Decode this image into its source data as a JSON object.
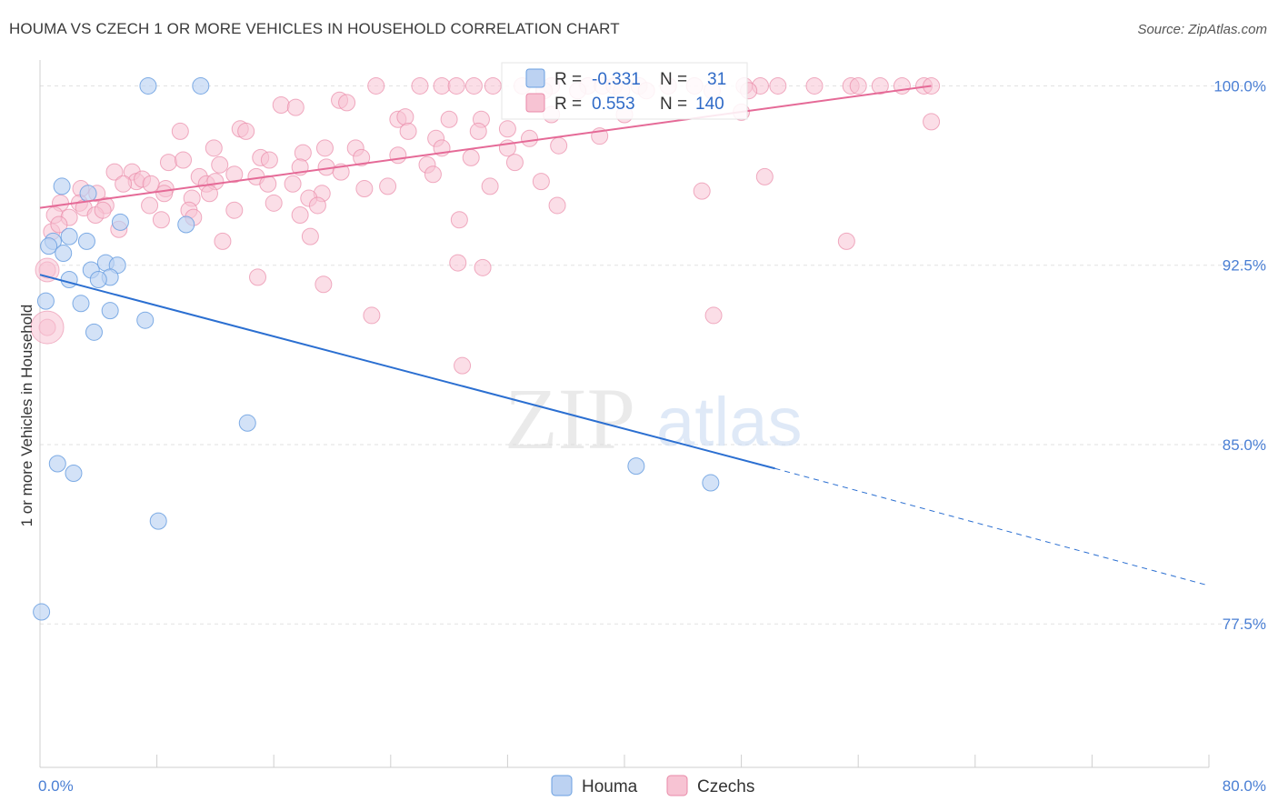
{
  "header": {
    "title": "HOUMA VS CZECH 1 OR MORE VEHICLES IN HOUSEHOLD CORRELATION CHART",
    "source": "Source: ZipAtlas.com"
  },
  "colors": {
    "houma": "#6a9fe0",
    "houma_fill": "#bcd2f2",
    "czechs": "#e98aa8",
    "czechs_fill": "#f7c3d3",
    "houma_line": "#2b6fd1",
    "czechs_line": "#e56a97",
    "grid": "#e2e2e2",
    "tick": "#4a7fd4"
  },
  "legend": {
    "houma": {
      "r_label": "R = ",
      "r_value": "-0.331",
      "n_label": "N = ",
      "n_value": "31"
    },
    "czechs": {
      "r_label": "R = ",
      "r_value": "0.553",
      "n_label": "N = ",
      "n_value": "140"
    }
  },
  "watermark": {
    "zip": "ZIP",
    "atlas": "atlas"
  },
  "chart_data": {
    "type": "scatter",
    "title": "HOUMA VS CZECH 1 OR MORE VEHICLES IN HOUSEHOLD CORRELATION CHART",
    "xlabel": "",
    "ylabel": "1 or more Vehicles in Household",
    "xlim": [
      0,
      80
    ],
    "ylim": [
      71.5,
      101.5
    ],
    "x_tick_labels": [
      "0.0%",
      "80.0%"
    ],
    "y_ticks": [
      77.5,
      85.0,
      92.5,
      100.0
    ],
    "y_tick_labels": [
      "77.5%",
      "85.0%",
      "92.5%",
      "100.0%"
    ],
    "grid": true,
    "legend_position": "bottom-center",
    "series": [
      {
        "name": "Houma",
        "r": -0.331,
        "n": 31,
        "trend": {
          "x0": 0,
          "y0": 92.1,
          "x1": 50.3,
          "y1": 84.0,
          "dashed_to_x": 80,
          "dashed_to_y": 79.1
        },
        "points": [
          [
            7.4,
            100.0
          ],
          [
            11.0,
            100.0
          ],
          [
            1.5,
            95.8
          ],
          [
            3.3,
            95.5
          ],
          [
            0.9,
            93.5
          ],
          [
            0.6,
            93.3
          ],
          [
            2.0,
            93.7
          ],
          [
            3.2,
            93.5
          ],
          [
            1.6,
            93.0
          ],
          [
            5.5,
            94.3
          ],
          [
            10.0,
            94.2
          ],
          [
            3.5,
            92.3
          ],
          [
            4.5,
            92.6
          ],
          [
            5.3,
            92.5
          ],
          [
            4.8,
            92.0
          ],
          [
            2.0,
            91.9
          ],
          [
            4.0,
            91.9
          ],
          [
            0.4,
            91.0
          ],
          [
            2.8,
            90.9
          ],
          [
            4.8,
            90.6
          ],
          [
            7.2,
            90.2
          ],
          [
            3.7,
            89.7
          ],
          [
            14.2,
            85.9
          ],
          [
            1.2,
            84.2
          ],
          [
            2.3,
            83.8
          ],
          [
            40.8,
            84.1
          ],
          [
            45.9,
            83.4
          ],
          [
            8.1,
            81.8
          ],
          [
            0.1,
            78.0
          ]
        ]
      },
      {
        "name": "Czechs",
        "r": 0.553,
        "n": 140,
        "trend": {
          "x0": 0,
          "y0": 94.9,
          "x1": 61.0,
          "y1": 100.0
        },
        "points": [
          [
            23.0,
            100.0
          ],
          [
            26.0,
            100.0
          ],
          [
            27.5,
            100.0
          ],
          [
            28.5,
            100.0
          ],
          [
            29.7,
            100.0
          ],
          [
            31.0,
            100.0
          ],
          [
            33.0,
            100.0
          ],
          [
            35.0,
            100.0
          ],
          [
            37.5,
            100.0
          ],
          [
            38.5,
            100.0
          ],
          [
            39.3,
            100.0
          ],
          [
            41.0,
            100.0
          ],
          [
            43.0,
            100.0
          ],
          [
            44.8,
            100.0
          ],
          [
            48.2,
            100.0
          ],
          [
            49.3,
            100.0
          ],
          [
            50.5,
            100.0
          ],
          [
            53.0,
            100.0
          ],
          [
            55.5,
            100.0
          ],
          [
            56.0,
            100.0
          ],
          [
            57.5,
            100.0
          ],
          [
            59.0,
            100.0
          ],
          [
            60.5,
            100.0
          ],
          [
            61.0,
            100.0
          ],
          [
            34.5,
            99.8
          ],
          [
            36.8,
            99.8
          ],
          [
            39.8,
            99.8
          ],
          [
            41.5,
            99.8
          ],
          [
            46.0,
            99.8
          ],
          [
            48.5,
            99.8
          ],
          [
            16.5,
            99.2
          ],
          [
            17.5,
            99.1
          ],
          [
            20.5,
            99.4
          ],
          [
            21.0,
            99.3
          ],
          [
            24.5,
            98.6
          ],
          [
            25.0,
            98.7
          ],
          [
            28.0,
            98.6
          ],
          [
            30.2,
            98.6
          ],
          [
            32.0,
            98.2
          ],
          [
            35.0,
            98.8
          ],
          [
            40.0,
            98.8
          ],
          [
            48.0,
            98.9
          ],
          [
            61.0,
            98.5
          ],
          [
            9.6,
            98.1
          ],
          [
            13.7,
            98.2
          ],
          [
            14.1,
            98.1
          ],
          [
            25.2,
            98.1
          ],
          [
            27.1,
            97.8
          ],
          [
            30.0,
            98.1
          ],
          [
            33.5,
            97.8
          ],
          [
            35.5,
            97.5
          ],
          [
            38.3,
            97.9
          ],
          [
            11.9,
            97.4
          ],
          [
            18.0,
            97.2
          ],
          [
            19.5,
            97.4
          ],
          [
            21.6,
            97.4
          ],
          [
            22.0,
            97.0
          ],
          [
            24.5,
            97.1
          ],
          [
            27.5,
            97.4
          ],
          [
            29.5,
            97.0
          ],
          [
            32.0,
            97.4
          ],
          [
            8.8,
            96.8
          ],
          [
            9.8,
            96.9
          ],
          [
            12.3,
            96.7
          ],
          [
            15.1,
            97.0
          ],
          [
            15.7,
            96.9
          ],
          [
            17.8,
            96.6
          ],
          [
            19.6,
            96.6
          ],
          [
            20.6,
            96.4
          ],
          [
            26.5,
            96.7
          ],
          [
            32.5,
            96.8
          ],
          [
            5.1,
            96.4
          ],
          [
            6.3,
            96.4
          ],
          [
            6.6,
            96.0
          ],
          [
            7.0,
            96.1
          ],
          [
            8.6,
            95.7
          ],
          [
            10.9,
            96.2
          ],
          [
            11.4,
            95.9
          ],
          [
            12.0,
            96.0
          ],
          [
            13.3,
            96.3
          ],
          [
            14.8,
            96.2
          ],
          [
            15.6,
            95.9
          ],
          [
            17.3,
            95.9
          ],
          [
            19.3,
            95.5
          ],
          [
            22.2,
            95.7
          ],
          [
            23.8,
            95.8
          ],
          [
            26.9,
            96.3
          ],
          [
            30.8,
            95.8
          ],
          [
            34.3,
            96.0
          ],
          [
            49.6,
            96.2
          ],
          [
            2.8,
            95.7
          ],
          [
            3.9,
            95.5
          ],
          [
            5.7,
            95.9
          ],
          [
            7.6,
            95.9
          ],
          [
            8.5,
            95.5
          ],
          [
            11.6,
            95.5
          ],
          [
            1.4,
            95.1
          ],
          [
            2.7,
            95.1
          ],
          [
            3.0,
            94.9
          ],
          [
            4.5,
            95.0
          ],
          [
            7.5,
            95.0
          ],
          [
            10.4,
            95.3
          ],
          [
            13.3,
            94.8
          ],
          [
            16.0,
            95.1
          ],
          [
            18.4,
            95.3
          ],
          [
            19.0,
            95.0
          ],
          [
            35.4,
            95.0
          ],
          [
            45.3,
            95.6
          ],
          [
            1.0,
            94.6
          ],
          [
            2.0,
            94.5
          ],
          [
            3.8,
            94.6
          ],
          [
            4.3,
            94.8
          ],
          [
            5.4,
            94.0
          ],
          [
            8.3,
            94.4
          ],
          [
            10.2,
            94.8
          ],
          [
            10.5,
            94.5
          ],
          [
            17.8,
            94.6
          ],
          [
            28.7,
            94.4
          ],
          [
            0.8,
            93.9
          ],
          [
            1.3,
            94.2
          ],
          [
            12.5,
            93.5
          ],
          [
            18.5,
            93.7
          ],
          [
            55.2,
            93.5
          ],
          [
            0.5,
            92.3
          ],
          [
            14.9,
            92.0
          ],
          [
            28.6,
            92.6
          ],
          [
            30.3,
            92.4
          ],
          [
            19.4,
            91.7
          ],
          [
            22.7,
            90.4
          ],
          [
            46.1,
            90.4
          ],
          [
            0.5,
            89.9
          ],
          [
            28.9,
            88.3
          ]
        ]
      }
    ]
  }
}
